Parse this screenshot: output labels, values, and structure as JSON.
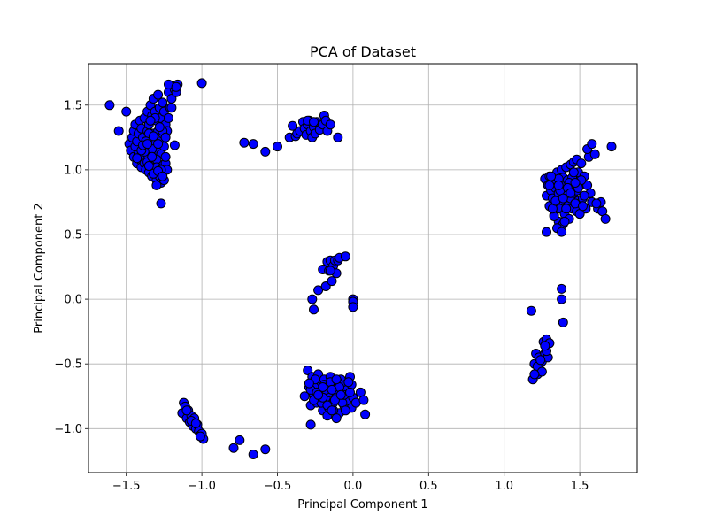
{
  "chart_data": {
    "type": "scatter",
    "title": "PCA of Dataset",
    "xlabel": "Principal Component 1",
    "ylabel": "Principal Component 2",
    "xlim": [
      -1.75,
      1.88
    ],
    "ylim": [
      -1.34,
      1.82
    ],
    "xticks": [
      -1.5,
      -1.0,
      -0.5,
      0.0,
      0.5,
      1.0,
      1.5
    ],
    "xtick_labels": [
      "−1.5",
      "−1.0",
      "−0.5",
      "0.0",
      "0.5",
      "1.0",
      "1.5"
    ],
    "yticks": [
      -1.0,
      -0.5,
      0.0,
      0.5,
      1.0,
      1.5
    ],
    "ytick_labels": [
      "−1.0",
      "−0.5",
      "0.0",
      "0.5",
      "1.0",
      "1.5"
    ],
    "grid": true,
    "marker_fill": "#0000ff",
    "marker_edge": "#000000",
    "series": [
      {
        "x": [
          -1.61,
          -1.55,
          -1.5,
          -1.48,
          -1.47,
          -1.46,
          -1.45,
          -1.45,
          -1.44,
          -1.44,
          -1.43,
          -1.43,
          -1.42,
          -1.42,
          -1.41,
          -1.41,
          -1.4,
          -1.4,
          -1.4,
          -1.39,
          -1.39,
          -1.38,
          -1.38,
          -1.38,
          -1.37,
          -1.37,
          -1.36,
          -1.36,
          -1.36,
          -1.35,
          -1.35,
          -1.35,
          -1.34,
          -1.34,
          -1.34,
          -1.33,
          -1.33,
          -1.33,
          -1.32,
          -1.32,
          -1.32,
          -1.31,
          -1.31,
          -1.31,
          -1.3,
          -1.3,
          -1.3,
          -1.29,
          -1.29,
          -1.29,
          -1.28,
          -1.28,
          -1.28,
          -1.27,
          -1.27,
          -1.27,
          -1.26,
          -1.26,
          -1.26,
          -1.25,
          -1.25,
          -1.25,
          -1.24,
          -1.24,
          -1.23,
          -1.23,
          -1.22,
          -1.22,
          -1.21,
          -1.2,
          -1.19,
          -1.18,
          -1.17,
          -1.16,
          -1.27,
          -1.3,
          -1.33,
          -1.36,
          -1.38,
          -1.35,
          -1.32,
          -1.29,
          -1.26,
          -1.24,
          -1.28,
          -1.31,
          -1.34,
          -1.37,
          -1.4,
          -1.43,
          -1.39,
          -1.36,
          -1.33,
          -1.3,
          -1.27,
          -1.24,
          -1.2,
          -1.22,
          -1.3,
          -1.32,
          -1.35,
          -1.29,
          -1.18,
          -1.17,
          -1.0
        ],
        "y": [
          1.5,
          1.3,
          1.45,
          1.2,
          1.15,
          1.25,
          1.1,
          1.3,
          1.18,
          1.35,
          1.05,
          1.22,
          1.12,
          1.28,
          1.08,
          1.38,
          1.02,
          1.15,
          1.32,
          1.1,
          1.25,
          1.05,
          1.18,
          1.4,
          1.0,
          1.22,
          1.12,
          1.3,
          1.45,
          0.98,
          1.15,
          1.35,
          1.05,
          1.25,
          1.5,
          0.95,
          1.18,
          1.42,
          1.08,
          1.28,
          1.55,
          1.0,
          1.2,
          1.45,
          0.92,
          1.15,
          1.38,
          1.05,
          1.3,
          1.58,
          0.95,
          1.22,
          1.48,
          0.9,
          1.12,
          1.4,
          1.0,
          1.28,
          1.52,
          0.92,
          1.18,
          1.45,
          1.05,
          1.35,
          1.0,
          1.3,
          1.4,
          1.6,
          1.48,
          1.55,
          1.65,
          1.62,
          1.6,
          1.66,
          1.12,
          1.08,
          1.16,
          1.06,
          1.14,
          1.28,
          1.26,
          1.2,
          1.3,
          1.25,
          1.33,
          1.4,
          1.38,
          1.22,
          1.15,
          1.09,
          1.19,
          1.2,
          1.1,
          1.02,
          1.0,
          1.1,
          1.48,
          1.66,
          0.88,
          0.97,
          1.03,
          0.99,
          1.19,
          1.64,
          1.67
        ]
      },
      {
        "x": [
          -1.26,
          -1.27
        ],
        "y": [
          0.95,
          0.74
        ]
      },
      {
        "x": [
          -0.72,
          -0.66,
          -0.58,
          -0.5,
          -0.42,
          -0.4,
          -0.38,
          -0.37,
          -0.35,
          -0.33,
          -0.32,
          -0.31,
          -0.3,
          -0.29,
          -0.28,
          -0.27,
          -0.26,
          -0.25,
          -0.24,
          -0.22,
          -0.2,
          -0.19,
          -0.18,
          -0.17,
          -0.15,
          -0.1,
          -0.3,
          -0.26
        ],
        "y": [
          1.21,
          1.2,
          1.14,
          1.18,
          1.25,
          1.34,
          1.26,
          1.28,
          1.3,
          1.37,
          1.32,
          1.27,
          1.35,
          1.38,
          1.3,
          1.25,
          1.33,
          1.28,
          1.37,
          1.31,
          1.35,
          1.42,
          1.38,
          1.3,
          1.35,
          1.25,
          1.38,
          1.37
        ]
      },
      {
        "x": [
          1.27,
          1.28,
          1.29,
          1.3,
          1.3,
          1.31,
          1.32,
          1.33,
          1.33,
          1.34,
          1.35,
          1.35,
          1.36,
          1.36,
          1.37,
          1.37,
          1.38,
          1.38,
          1.39,
          1.39,
          1.4,
          1.4,
          1.41,
          1.41,
          1.42,
          1.42,
          1.43,
          1.43,
          1.44,
          1.44,
          1.45,
          1.45,
          1.46,
          1.46,
          1.47,
          1.47,
          1.48,
          1.48,
          1.49,
          1.49,
          1.5,
          1.5,
          1.51,
          1.52,
          1.53,
          1.54,
          1.55,
          1.56,
          1.57,
          1.58,
          1.6,
          1.62,
          1.64,
          1.65,
          1.67,
          1.71,
          1.3,
          1.33,
          1.36,
          1.39,
          1.42,
          1.45,
          1.48,
          1.51,
          1.35,
          1.38,
          1.41,
          1.44,
          1.47,
          1.5,
          1.53,
          1.32,
          1.34,
          1.37,
          1.4,
          1.43,
          1.46,
          1.49,
          1.52,
          1.55,
          1.58,
          1.61,
          1.28,
          1.31,
          1.36,
          1.39,
          1.42,
          1.44,
          1.47
        ],
        "y": [
          0.93,
          0.8,
          0.88,
          0.72,
          0.95,
          0.84,
          0.78,
          0.92,
          0.65,
          0.86,
          0.74,
          0.98,
          0.82,
          0.6,
          0.9,
          0.7,
          0.84,
          1.0,
          0.76,
          0.94,
          0.66,
          0.88,
          0.8,
          1.02,
          0.72,
          0.92,
          0.62,
          0.86,
          0.78,
          1.04,
          0.7,
          0.9,
          0.82,
          1.06,
          0.74,
          0.96,
          0.84,
          1.08,
          0.76,
          0.98,
          0.66,
          0.88,
          1.05,
          0.78,
          0.95,
          0.7,
          0.88,
          1.1,
          0.82,
          0.75,
          1.12,
          0.7,
          0.75,
          0.68,
          0.62,
          1.18,
          0.88,
          0.64,
          0.93,
          0.58,
          0.82,
          0.94,
          0.68,
          0.92,
          0.55,
          0.52,
          0.7,
          0.86,
          0.74,
          0.66,
          0.8,
          0.7,
          0.76,
          0.84,
          0.6,
          0.9,
          0.98,
          0.86,
          0.72,
          1.16,
          1.2,
          0.74,
          0.52,
          0.95,
          0.88,
          0.78,
          0.86,
          0.82,
          0.9
        ]
      },
      {
        "x": [
          1.38,
          1.39,
          1.38
        ],
        "y": [
          0.08,
          -0.18,
          0.0
        ]
      },
      {
        "x": [
          1.18,
          1.19,
          1.2,
          1.21,
          1.22,
          1.23,
          1.24,
          1.25,
          1.26,
          1.27,
          1.28,
          1.29,
          1.3,
          1.22,
          1.25,
          1.28,
          1.24,
          1.27,
          1.2
        ],
        "y": [
          -0.09,
          -0.62,
          -0.5,
          -0.42,
          -0.58,
          -0.45,
          -0.55,
          -0.48,
          -0.33,
          -0.42,
          -0.31,
          -0.45,
          -0.34,
          -0.52,
          -0.56,
          -0.4,
          -0.47,
          -0.36,
          -0.58
        ]
      },
      {
        "x": [
          -0.27,
          -0.26,
          -0.23,
          -0.2,
          -0.18,
          -0.17,
          -0.16,
          -0.15,
          -0.14,
          -0.13,
          -0.12,
          -0.11,
          -0.1,
          -0.09,
          -0.05,
          0.0,
          0.0,
          0.0,
          -0.15
        ],
        "y": [
          0.0,
          -0.08,
          0.07,
          0.23,
          0.1,
          0.29,
          0.22,
          0.3,
          0.14,
          0.26,
          0.3,
          0.2,
          0.3,
          0.32,
          0.33,
          0.0,
          -0.02,
          -0.06,
          0.22
        ]
      },
      {
        "x": [
          -0.32,
          -0.3,
          -0.29,
          -0.28,
          -0.27,
          -0.26,
          -0.25,
          -0.24,
          -0.23,
          -0.22,
          -0.21,
          -0.2,
          -0.19,
          -0.18,
          -0.17,
          -0.16,
          -0.15,
          -0.14,
          -0.13,
          -0.12,
          -0.11,
          -0.1,
          -0.09,
          -0.08,
          -0.07,
          -0.06,
          -0.05,
          -0.04,
          -0.03,
          -0.02,
          -0.01,
          0.0,
          0.02,
          0.05,
          0.07,
          0.08,
          -0.28,
          -0.25,
          -0.22,
          -0.19,
          -0.16,
          -0.13,
          -0.1,
          -0.07,
          -0.04,
          -0.01,
          -0.24,
          -0.21,
          -0.18,
          -0.15,
          -0.12,
          -0.09,
          -0.06,
          -0.03,
          -0.2,
          -0.17,
          -0.14,
          -0.11,
          -0.08,
          -0.05,
          -0.02,
          -0.29,
          -0.26,
          -0.23,
          -0.2,
          -0.17,
          -0.14,
          -0.11
        ],
        "y": [
          -0.75,
          -0.55,
          -0.68,
          -0.82,
          -0.6,
          -0.74,
          -0.66,
          -0.8,
          -0.58,
          -0.72,
          -0.64,
          -0.86,
          -0.62,
          -0.76,
          -0.68,
          -0.84,
          -0.6,
          -0.72,
          -0.8,
          -0.64,
          -0.76,
          -0.7,
          -0.88,
          -0.62,
          -0.74,
          -0.82,
          -0.66,
          -0.78,
          -0.7,
          -0.6,
          -0.84,
          -0.76,
          -0.8,
          -0.72,
          -0.78,
          -0.89,
          -0.7,
          -0.62,
          -0.78,
          -0.66,
          -0.72,
          -0.86,
          -0.64,
          -0.8,
          -0.7,
          -0.66,
          -0.72,
          -0.8,
          -0.7,
          -0.64,
          -0.78,
          -0.68,
          -0.74,
          -0.64,
          -0.76,
          -0.82,
          -0.7,
          -0.62,
          -0.74,
          -0.86,
          -0.72,
          -0.65,
          -0.78,
          -0.74,
          -0.68,
          -0.9,
          -0.86,
          -0.92
        ]
      },
      {
        "x": [
          -0.28
        ],
        "y": [
          -0.97
        ]
      },
      {
        "x": [
          -1.13,
          -1.12,
          -1.11,
          -1.1,
          -1.09,
          -1.08,
          -1.07,
          -1.06,
          -1.05,
          -1.04,
          -1.03,
          -1.02,
          -1.01,
          -1.0,
          -0.99,
          -1.1,
          -1.07,
          -1.04,
          -1.01
        ],
        "y": [
          -0.88,
          -0.8,
          -0.83,
          -0.92,
          -0.86,
          -0.95,
          -0.9,
          -0.98,
          -0.92,
          -1.0,
          -0.97,
          -1.02,
          -1.05,
          -1.04,
          -1.08,
          -0.86,
          -0.94,
          -0.96,
          -1.06
        ]
      },
      {
        "x": [
          -0.79,
          -0.75,
          -0.66,
          -0.58
        ],
        "y": [
          -1.15,
          -1.09,
          -1.2,
          -1.16
        ]
      }
    ]
  }
}
